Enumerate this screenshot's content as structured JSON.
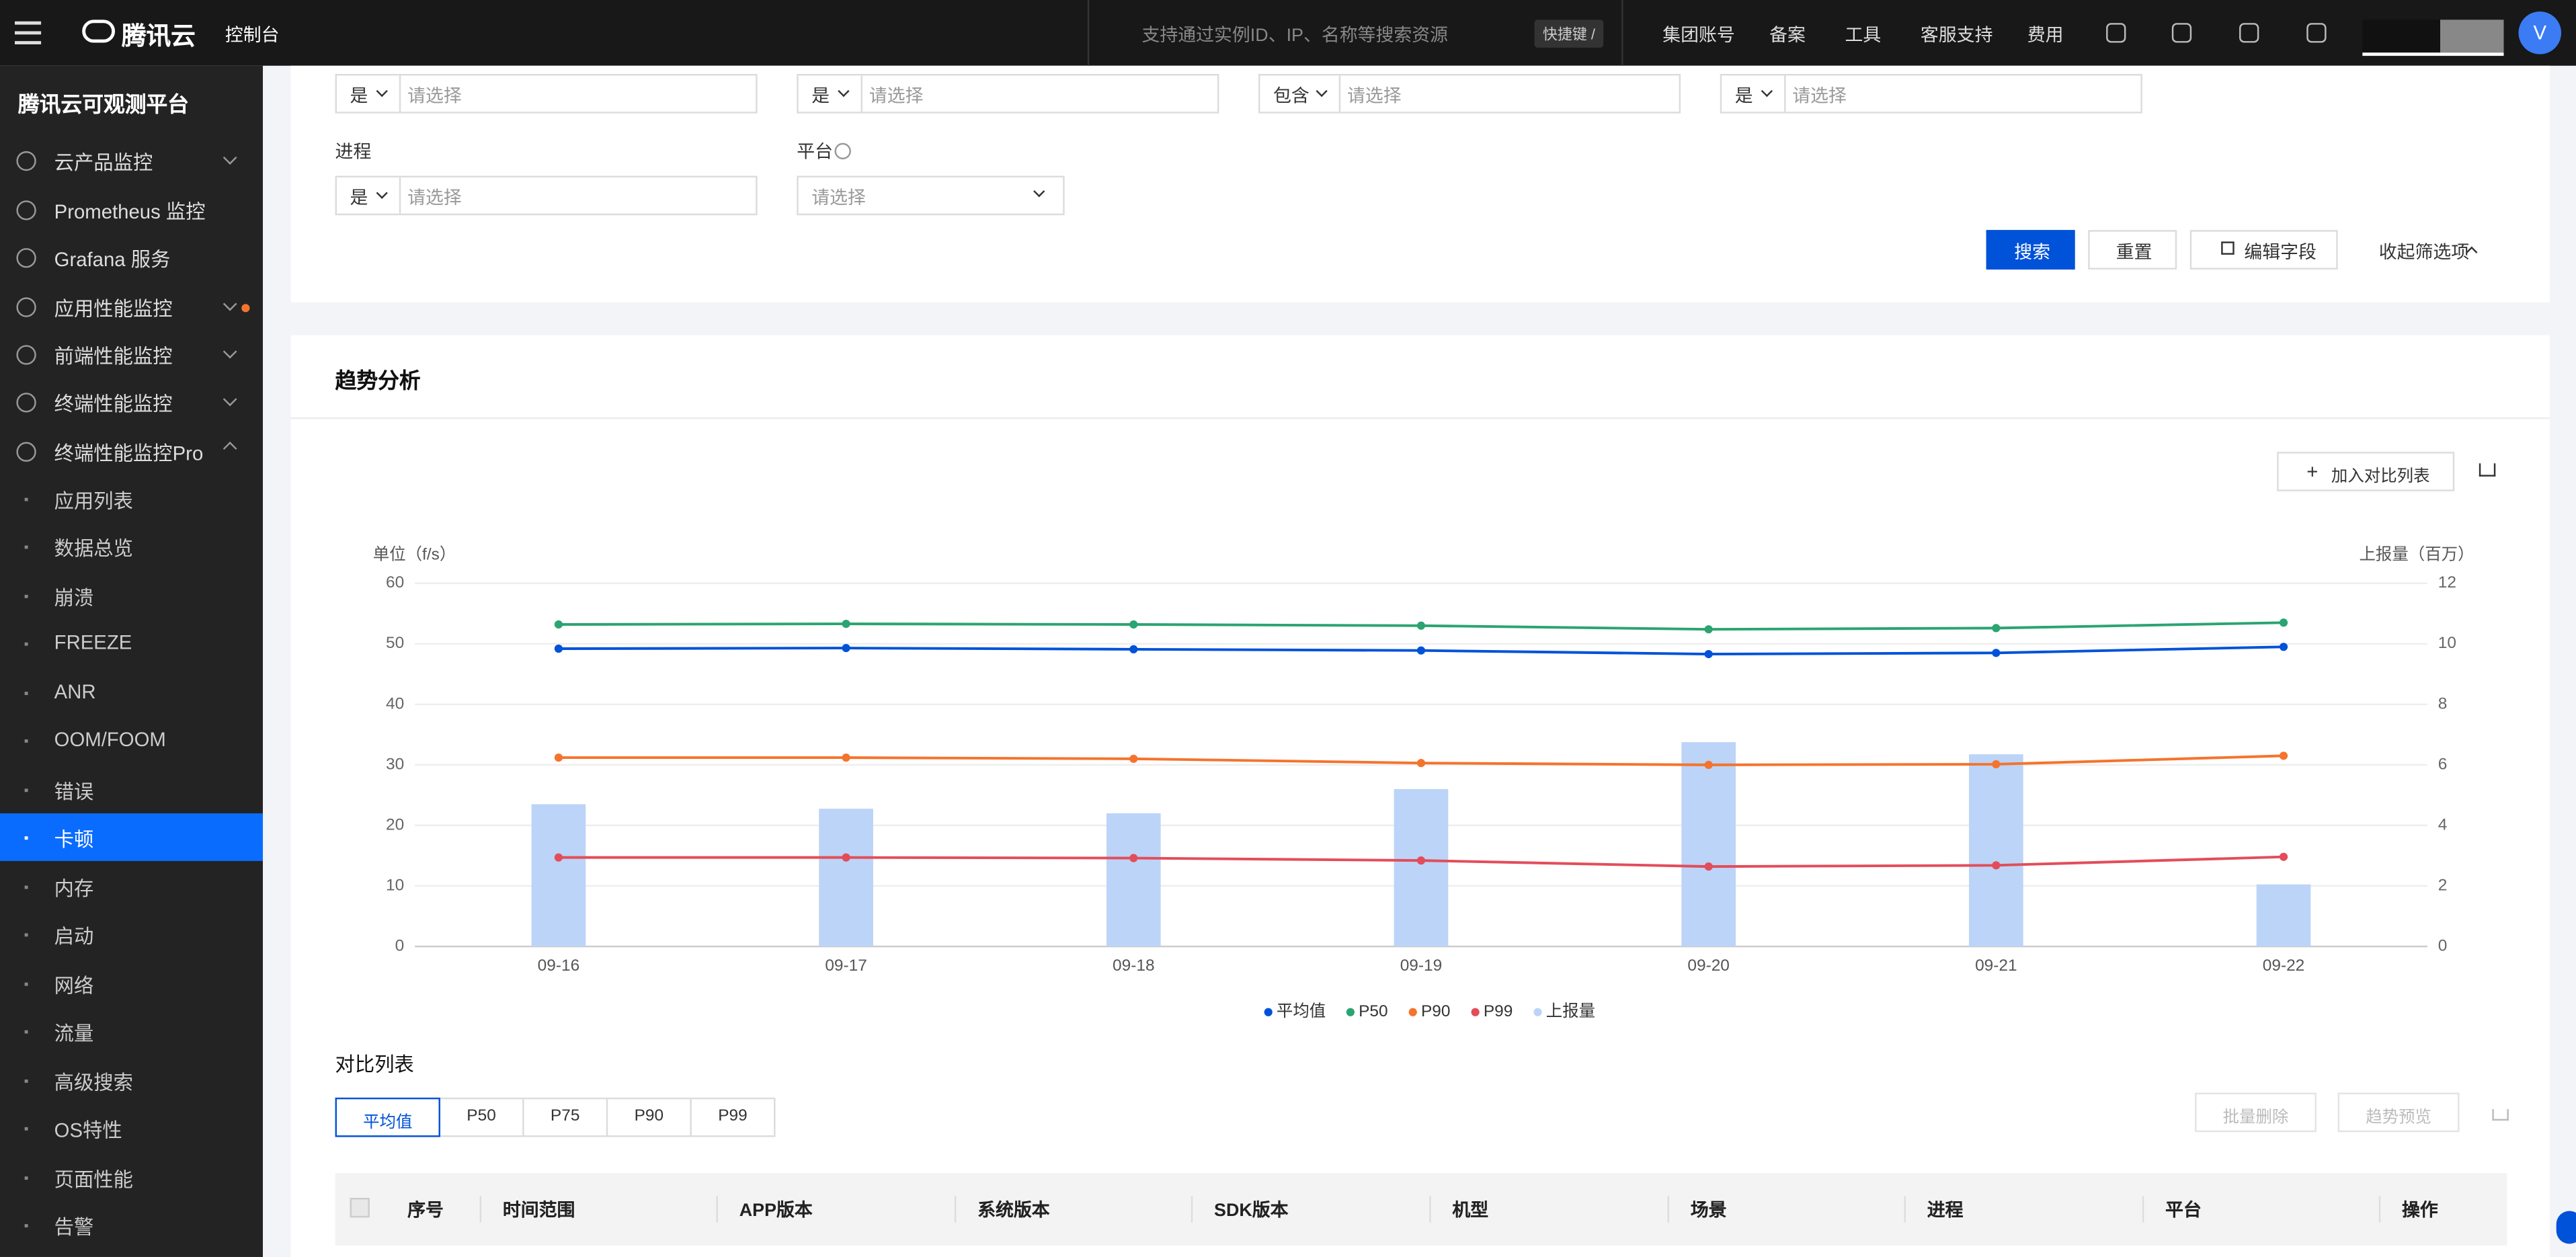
{
  "topbar": {
    "brand": "腾讯云",
    "console": "控制台",
    "search_placeholder": "支持通过实例ID、IP、名称等搜索资源",
    "shortcut": "快捷键 /",
    "nav": [
      "集团账号",
      "备案",
      "工具",
      "客服支持",
      "费用"
    ],
    "avatar": "V"
  },
  "sidebar": {
    "title": "腾讯云可观测平台",
    "groups": [
      "云产品监控",
      "Prometheus 监控",
      "Grafana 服务",
      "应用性能监控",
      "前端性能监控",
      "终端性能监控",
      "终端性能监控Pro"
    ],
    "items": [
      "应用列表",
      "数据总览",
      "崩溃",
      "FREEZE",
      "ANR",
      "OOM/FOOM",
      "错误",
      "卡顿",
      "内存",
      "启动",
      "网络",
      "流量",
      "高级搜索",
      "OS特性",
      "页面性能",
      "告警"
    ],
    "selected": 7
  },
  "filters": {
    "row1": [
      {
        "op": "是",
        "placeholder": "请选择"
      },
      {
        "op": "是",
        "placeholder": "请选择"
      },
      {
        "op": "包含",
        "placeholder": "请选择"
      },
      {
        "op": "是",
        "placeholder": "请选择"
      }
    ],
    "row2": [
      {
        "label": "进程",
        "op": "是",
        "placeholder": "请选择"
      },
      {
        "label": "平台",
        "placeholder": "请选择"
      }
    ],
    "buttons": {
      "search": "搜索",
      "reset": "重置",
      "edit": "编辑字段",
      "collapse": "收起筛选项"
    }
  },
  "trend": {
    "title": "趋势分析",
    "add_compare": "加入对比列表"
  },
  "chart_data": {
    "type": "combo",
    "ylabel": "单位（f/s）",
    "y2label": "上报量（百万）",
    "categories": [
      "09-16",
      "09-17",
      "09-18",
      "09-19",
      "09-20",
      "09-21",
      "09-22"
    ],
    "ylim": [
      0,
      60
    ],
    "yticks": [
      0,
      10,
      20,
      30,
      40,
      50,
      60
    ],
    "y2lim": [
      0,
      12
    ],
    "y2ticks": [
      0,
      2,
      4,
      6,
      8,
      10,
      12
    ],
    "grid": true,
    "legend": "bottom",
    "series": [
      {
        "name": "平均值",
        "color": "#0052d9",
        "kind": "line",
        "values": [
          49.2,
          49.3,
          49.1,
          48.9,
          48.3,
          48.5,
          49.5
        ]
      },
      {
        "name": "P50",
        "color": "#2ba471",
        "kind": "line",
        "values": [
          53.2,
          53.3,
          53.2,
          53.0,
          52.4,
          52.6,
          53.5
        ]
      },
      {
        "name": "P90",
        "color": "#f5732d",
        "kind": "line",
        "values": [
          31.2,
          31.2,
          31.0,
          30.3,
          30.0,
          30.1,
          31.5
        ]
      },
      {
        "name": "P99",
        "color": "#e34d59",
        "kind": "line",
        "values": [
          14.7,
          14.7,
          14.6,
          14.2,
          13.2,
          13.4,
          14.8
        ]
      },
      {
        "name": "上报量",
        "color": "#bcd4f7",
        "kind": "bar",
        "axis": "y2",
        "values": [
          4.7,
          4.55,
          4.4,
          5.2,
          6.75,
          6.35,
          2.05
        ]
      }
    ]
  },
  "compare": {
    "title": "对比列表",
    "tabs": [
      "平均值",
      "P50",
      "P75",
      "P90",
      "P99"
    ],
    "selected_tab": 0,
    "batch_delete": "批量删除",
    "trend_preview": "趋势预览",
    "columns": [
      "序号",
      "时间范围",
      "APP版本",
      "系统版本",
      "SDK版本",
      "机型",
      "场景",
      "进程",
      "平台",
      "操作"
    ]
  }
}
